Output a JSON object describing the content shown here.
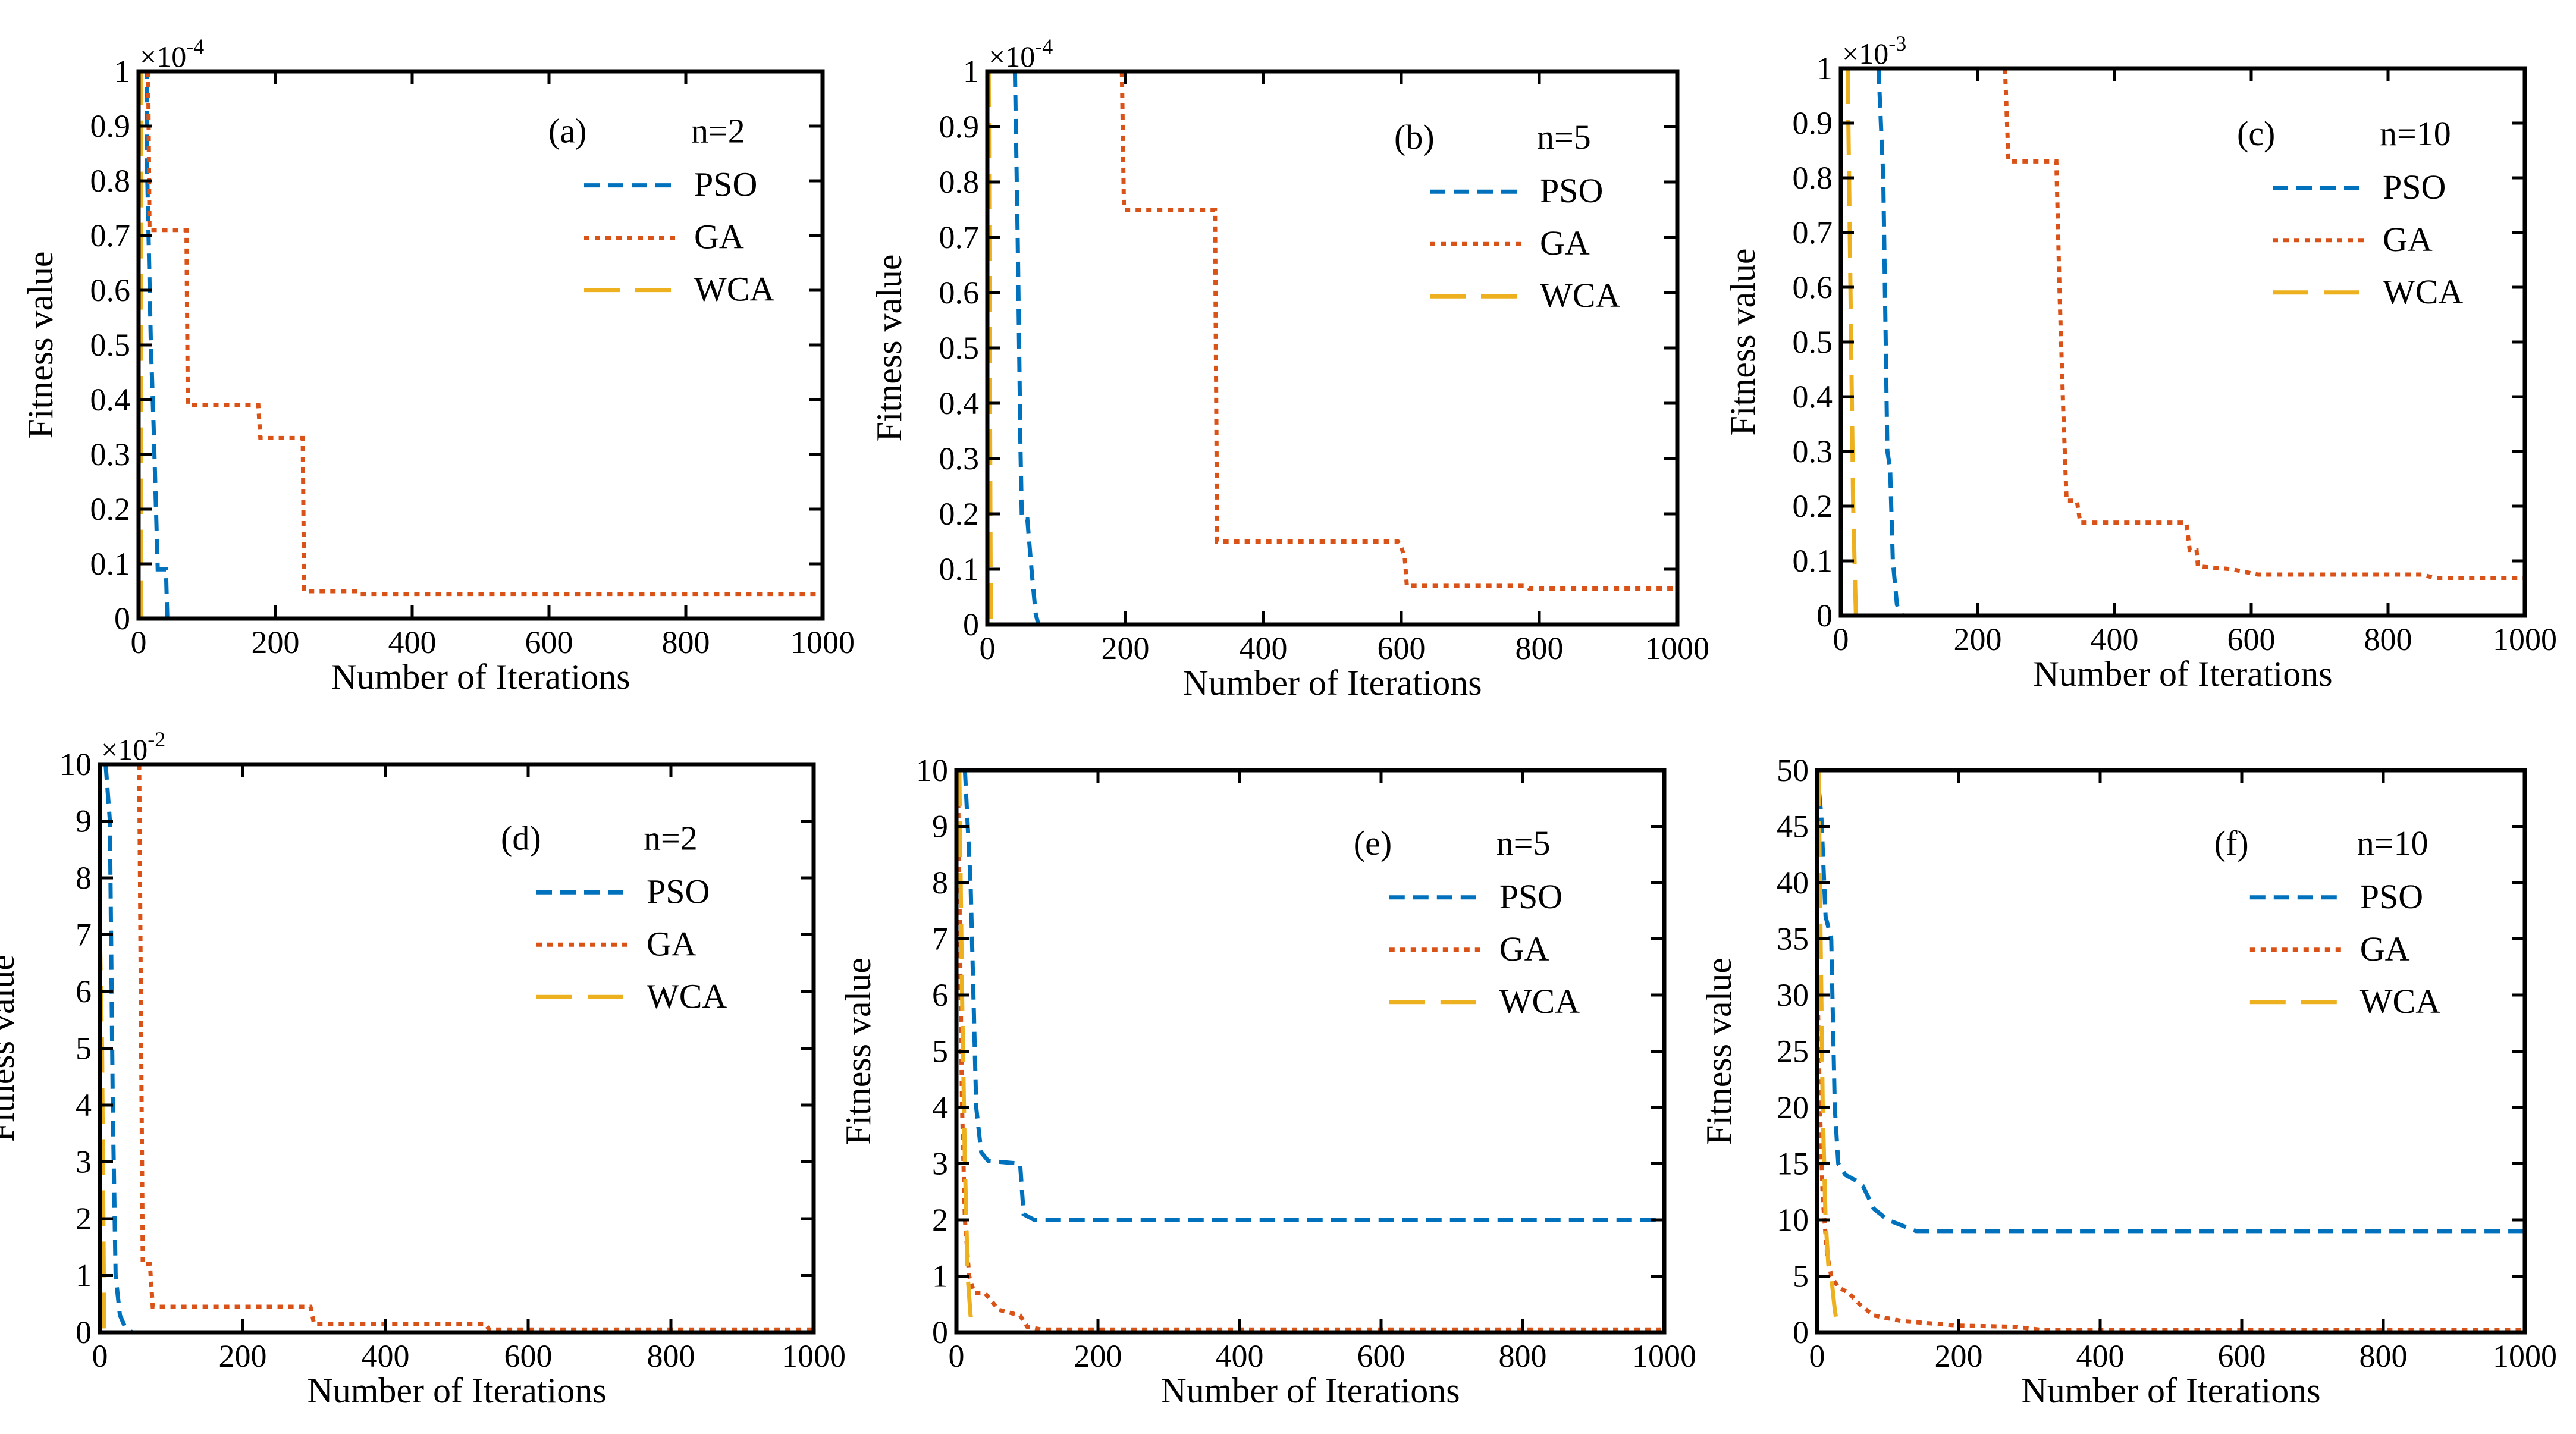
{
  "figure": {
    "description_colors": {
      "PSO": "#0072BD",
      "GA": "#D95319",
      "WCA": "#EDB120",
      "axis": "#000000"
    }
  },
  "chart_data": [
    {
      "type": "line",
      "panel_label": "(a)",
      "n_label": "n=2",
      "xlabel": "Number of Iterations",
      "ylabel": "Fitness value",
      "exponent": "×10",
      "exponent_power": "-4",
      "xlim": [
        0,
        1000
      ],
      "ylim": [
        0,
        1
      ],
      "xticks": [
        "0",
        "200",
        "400",
        "600",
        "800",
        "1000"
      ],
      "yticks": [
        "0",
        "0.1",
        "0.2",
        "0.3",
        "0.4",
        "0.5",
        "0.6",
        "0.7",
        "0.8",
        "0.9",
        "1"
      ],
      "series": [
        {
          "name": "PSO",
          "color": "#0072BD",
          "dash": "dash",
          "points": [
            [
              0,
              1
            ],
            [
              12,
              1
            ],
            [
              12,
              0.85
            ],
            [
              18,
              0.5
            ],
            [
              22,
              0.35
            ],
            [
              28,
              0.09
            ],
            [
              40,
              0.09
            ],
            [
              42,
              0
            ],
            [
              1000,
              0
            ]
          ]
        },
        {
          "name": "GA",
          "color": "#D95319",
          "dash": "dot",
          "points": [
            [
              14,
              1
            ],
            [
              16,
              0.71
            ],
            [
              70,
              0.71
            ],
            [
              72,
              0.39
            ],
            [
              175,
              0.39
            ],
            [
              178,
              0.33
            ],
            [
              240,
              0.33
            ],
            [
              242,
              0.05
            ],
            [
              320,
              0.05
            ],
            [
              322,
              0.045
            ],
            [
              1000,
              0.045
            ]
          ]
        },
        {
          "name": "WCA",
          "color": "#EDB120",
          "dash": "longdash",
          "points": [
            [
              0,
              1
            ],
            [
              3,
              1
            ],
            [
              4,
              0
            ],
            [
              1000,
              0
            ]
          ]
        }
      ]
    },
    {
      "type": "line",
      "panel_label": "(b)",
      "n_label": "n=5",
      "xlabel": "Number of Iterations",
      "ylabel": "Fitness value",
      "exponent": "×10",
      "exponent_power": "-4",
      "xlim": [
        0,
        1000
      ],
      "ylim": [
        0,
        1
      ],
      "xticks": [
        "0",
        "200",
        "400",
        "600",
        "800",
        "1000"
      ],
      "yticks": [
        "0",
        "0.1",
        "0.2",
        "0.3",
        "0.4",
        "0.5",
        "0.6",
        "0.7",
        "0.8",
        "0.9",
        "1"
      ],
      "series": [
        {
          "name": "PSO",
          "color": "#0072BD",
          "dash": "dash",
          "points": [
            [
              40,
              1
            ],
            [
              44,
              0.7
            ],
            [
              48,
              0.32
            ],
            [
              50,
              0.19
            ],
            [
              58,
              0.19
            ],
            [
              64,
              0.1
            ],
            [
              70,
              0.02
            ],
            [
              74,
              0
            ],
            [
              1000,
              0
            ]
          ]
        },
        {
          "name": "GA",
          "color": "#D95319",
          "dash": "dot",
          "points": [
            [
              195,
              1
            ],
            [
              198,
              0.75
            ],
            [
              330,
              0.75
            ],
            [
              333,
              0.15
            ],
            [
              595,
              0.15
            ],
            [
              600,
              0.14
            ],
            [
              605,
              0.12
            ],
            [
              608,
              0.07
            ],
            [
              780,
              0.07
            ],
            [
              785,
              0.065
            ],
            [
              1000,
              0.065
            ]
          ]
        },
        {
          "name": "WCA",
          "color": "#EDB120",
          "dash": "longdash",
          "points": [
            [
              2,
              1
            ],
            [
              5,
              0
            ],
            [
              1000,
              0
            ]
          ]
        }
      ]
    },
    {
      "type": "line",
      "panel_label": "(c)",
      "n_label": "n=10",
      "xlabel": "Number of Iterations",
      "ylabel": "Fitness value",
      "exponent": "×10",
      "exponent_power": "-3",
      "xlim": [
        0,
        1000
      ],
      "ylim": [
        0,
        1
      ],
      "xticks": [
        "0",
        "200",
        "400",
        "600",
        "800",
        "1000"
      ],
      "yticks": [
        "0",
        "0.1",
        "0.2",
        "0.3",
        "0.4",
        "0.5",
        "0.6",
        "0.7",
        "0.8",
        "0.9",
        "1"
      ],
      "series": [
        {
          "name": "PSO",
          "color": "#0072BD",
          "dash": "dash",
          "points": [
            [
              55,
              1
            ],
            [
              62,
              0.8
            ],
            [
              68,
              0.3
            ],
            [
              72,
              0.27
            ],
            [
              76,
              0.1
            ],
            [
              82,
              0.02
            ],
            [
              90,
              0
            ],
            [
              1000,
              0
            ]
          ]
        },
        {
          "name": "GA",
          "color": "#D95319",
          "dash": "dot",
          "points": [
            [
              240,
              1
            ],
            [
              245,
              0.83
            ],
            [
              315,
              0.83
            ],
            [
              320,
              0.58
            ],
            [
              325,
              0.38
            ],
            [
              330,
              0.21
            ],
            [
              345,
              0.21
            ],
            [
              350,
              0.17
            ],
            [
              505,
              0.17
            ],
            [
              510,
              0.12
            ],
            [
              520,
              0.12
            ],
            [
              522,
              0.09
            ],
            [
              570,
              0.085
            ],
            [
              610,
              0.075
            ],
            [
              850,
              0.075
            ],
            [
              870,
              0.068
            ],
            [
              1000,
              0.068
            ]
          ]
        },
        {
          "name": "WCA",
          "color": "#EDB120",
          "dash": "longdash",
          "points": [
            [
              10,
              1
            ],
            [
              14,
              0.6
            ],
            [
              18,
              0.2
            ],
            [
              22,
              0
            ],
            [
              1000,
              0
            ]
          ]
        }
      ]
    },
    {
      "type": "line",
      "panel_label": "(d)",
      "n_label": "n=2",
      "xlabel": "Number of Iterations",
      "ylabel": "Fitness value",
      "exponent": "×10",
      "exponent_power": "-2",
      "xlim": [
        0,
        1000
      ],
      "ylim": [
        0,
        10
      ],
      "xticks": [
        "0",
        "200",
        "400",
        "600",
        "800",
        "1000"
      ],
      "yticks": [
        "0",
        "1",
        "2",
        "3",
        "4",
        "5",
        "6",
        "7",
        "8",
        "9",
        "10"
      ],
      "series": [
        {
          "name": "PSO",
          "color": "#0072BD",
          "dash": "dash",
          "points": [
            [
              8,
              10
            ],
            [
              14,
              9
            ],
            [
              18,
              4
            ],
            [
              22,
              1
            ],
            [
              28,
              0.3
            ],
            [
              35,
              0.1
            ],
            [
              45,
              0
            ],
            [
              1000,
              0
            ]
          ]
        },
        {
          "name": "GA",
          "color": "#D95319",
          "dash": "dot",
          "points": [
            [
              55,
              10
            ],
            [
              60,
              1.2
            ],
            [
              70,
              1.2
            ],
            [
              74,
              0.45
            ],
            [
              295,
              0.45
            ],
            [
              300,
              0.15
            ],
            [
              540,
              0.15
            ],
            [
              545,
              0.05
            ],
            [
              1000,
              0.05
            ]
          ]
        },
        {
          "name": "WCA",
          "color": "#EDB120",
          "dash": "longdash",
          "points": [
            [
              0,
              7
            ],
            [
              3,
              5
            ],
            [
              6,
              0
            ],
            [
              1000,
              0
            ]
          ]
        }
      ]
    },
    {
      "type": "line",
      "panel_label": "(e)",
      "n_label": "n=5",
      "xlabel": "Number of Iterations",
      "ylabel": "Fitness value",
      "exponent": "",
      "exponent_power": "",
      "xlim": [
        0,
        1000
      ],
      "ylim": [
        0,
        10
      ],
      "xticks": [
        "0",
        "200",
        "400",
        "600",
        "800",
        "1000"
      ],
      "yticks": [
        "0",
        "1",
        "2",
        "3",
        "4",
        "5",
        "6",
        "7",
        "8",
        "9",
        "10"
      ],
      "series": [
        {
          "name": "PSO",
          "color": "#0072BD",
          "dash": "dash",
          "points": [
            [
              12,
              10
            ],
            [
              20,
              8
            ],
            [
              24,
              6
            ],
            [
              28,
              4
            ],
            [
              35,
              3.2
            ],
            [
              45,
              3.05
            ],
            [
              90,
              3.0
            ],
            [
              95,
              2.1
            ],
            [
              110,
              2.0
            ],
            [
              1000,
              2.0
            ]
          ]
        },
        {
          "name": "GA",
          "color": "#D95319",
          "dash": "dot",
          "points": [
            [
              2,
              10
            ],
            [
              5,
              7
            ],
            [
              8,
              4
            ],
            [
              12,
              2
            ],
            [
              18,
              1
            ],
            [
              25,
              0.7
            ],
            [
              40,
              0.7
            ],
            [
              60,
              0.4
            ],
            [
              90,
              0.3
            ],
            [
              100,
              0.1
            ],
            [
              120,
              0.05
            ],
            [
              1000,
              0.05
            ]
          ]
        },
        {
          "name": "WCA",
          "color": "#EDB120",
          "dash": "longdash",
          "points": [
            [
              4,
              10
            ],
            [
              8,
              6
            ],
            [
              12,
              3
            ],
            [
              16,
              1
            ],
            [
              20,
              0.3
            ],
            [
              25,
              0
            ],
            [
              1000,
              0
            ]
          ]
        }
      ]
    },
    {
      "type": "line",
      "panel_label": "(f)",
      "n_label": "n=10",
      "xlabel": "Number of Iterations",
      "ylabel": "Fitness value",
      "exponent": "",
      "exponent_power": "",
      "xlim": [
        0,
        1000
      ],
      "ylim": [
        0,
        50
      ],
      "xticks": [
        "0",
        "200",
        "400",
        "600",
        "800",
        "1000"
      ],
      "yticks": [
        "0",
        "5",
        "10",
        "15",
        "20",
        "25",
        "30",
        "35",
        "40",
        "45",
        "50"
      ],
      "series": [
        {
          "name": "PSO",
          "color": "#0072BD",
          "dash": "dash",
          "points": [
            [
              0,
              50
            ],
            [
              6,
              46
            ],
            [
              12,
              37
            ],
            [
              20,
              35
            ],
            [
              25,
              20
            ],
            [
              30,
              15
            ],
            [
              40,
              14
            ],
            [
              55,
              13.5
            ],
            [
              65,
              13
            ],
            [
              80,
              11
            ],
            [
              100,
              10
            ],
            [
              120,
              9.5
            ],
            [
              140,
              9
            ],
            [
              1000,
              9
            ]
          ]
        },
        {
          "name": "GA",
          "color": "#D95319",
          "dash": "dot",
          "points": [
            [
              0,
              33
            ],
            [
              4,
              20
            ],
            [
              8,
              12
            ],
            [
              14,
              7
            ],
            [
              20,
              5
            ],
            [
              30,
              4
            ],
            [
              45,
              3.5
            ],
            [
              60,
              2.5
            ],
            [
              80,
              1.5
            ],
            [
              120,
              1
            ],
            [
              200,
              0.6
            ],
            [
              280,
              0.5
            ],
            [
              320,
              0.2
            ],
            [
              1000,
              0.2
            ]
          ]
        },
        {
          "name": "WCA",
          "color": "#EDB120",
          "dash": "longdash",
          "points": [
            [
              2,
              50
            ],
            [
              5,
              35
            ],
            [
              8,
              20
            ],
            [
              12,
              10
            ],
            [
              16,
              6
            ],
            [
              20,
              5
            ],
            [
              25,
              2
            ],
            [
              30,
              0
            ],
            [
              1000,
              0
            ]
          ]
        }
      ]
    }
  ]
}
